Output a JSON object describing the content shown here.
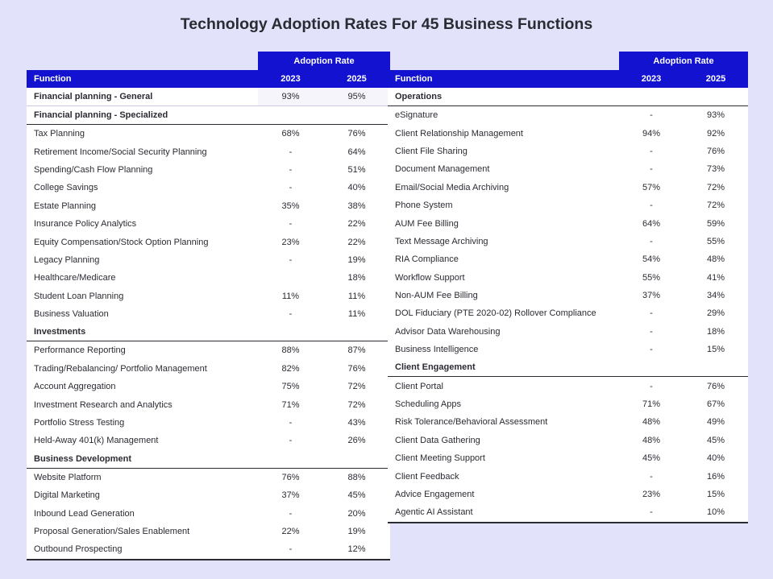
{
  "title": "Technology Adoption Rates For 45 Business Functions",
  "header": {
    "group_label": "Adoption Rate",
    "col_function": "Function",
    "col_2023": "2023",
    "col_2025": "2025"
  },
  "left_table": [
    {
      "section": "Financial planning - General",
      "v2023": "93%",
      "v2025": "95%",
      "rows": []
    },
    {
      "section": "Financial planning - Specialized",
      "rows": [
        {
          "name": "Tax Planning",
          "v2023": "68%",
          "v2025": "76%"
        },
        {
          "name": "Retirement Income/Social Security Planning",
          "v2023": "-",
          "v2025": "64%"
        },
        {
          "name": "Spending/Cash Flow Planning",
          "v2023": "-",
          "v2025": "51%"
        },
        {
          "name": "College Savings",
          "v2023": "-",
          "v2025": "40%"
        },
        {
          "name": "Estate Planning",
          "v2023": "35%",
          "v2025": "38%"
        },
        {
          "name": "Insurance Policy Analytics",
          "v2023": "-",
          "v2025": "22%"
        },
        {
          "name": "Equity Compensation/Stock Option Planning",
          "v2023": "23%",
          "v2025": "22%"
        },
        {
          "name": "Legacy Planning",
          "v2023": "-",
          "v2025": "19%"
        },
        {
          "name": "Healthcare/Medicare",
          "v2023": "",
          "v2025": "18%"
        },
        {
          "name": "Student Loan Planning",
          "v2023": "11%",
          "v2025": "11%"
        },
        {
          "name": "Business Valuation",
          "v2023": "-",
          "v2025": "11%"
        }
      ]
    },
    {
      "section": "Investments",
      "rows": [
        {
          "name": "Performance Reporting",
          "v2023": "88%",
          "v2025": "87%"
        },
        {
          "name": "Trading/Rebalancing/ Portfolio Management",
          "v2023": "82%",
          "v2025": "76%"
        },
        {
          "name": "Account Aggregation",
          "v2023": "75%",
          "v2025": "72%"
        },
        {
          "name": "Investment Research and Analytics",
          "v2023": "71%",
          "v2025": "72%"
        },
        {
          "name": "Portfolio Stress Testing",
          "v2023": "-",
          "v2025": "43%"
        },
        {
          "name": "Held-Away 401(k) Management",
          "v2023": "-",
          "v2025": "26%"
        }
      ]
    },
    {
      "section": "Business Development",
      "rows": [
        {
          "name": "Website Platform",
          "v2023": "76%",
          "v2025": "88%"
        },
        {
          "name": "Digital Marketing",
          "v2023": "37%",
          "v2025": "45%"
        },
        {
          "name": "Inbound Lead Generation",
          "v2023": "-",
          "v2025": "20%"
        },
        {
          "name": "Proposal Generation/Sales Enablement",
          "v2023": "22%",
          "v2025": "19%"
        },
        {
          "name": "Outbound Prospecting",
          "v2023": "-",
          "v2025": "12%"
        }
      ]
    }
  ],
  "right_table": [
    {
      "section": "Operations",
      "rows": [
        {
          "name": "eSignature",
          "v2023": "-",
          "v2025": "93%"
        },
        {
          "name": "Client Relationship Management",
          "v2023": "94%",
          "v2025": "92%"
        },
        {
          "name": "Client File Sharing",
          "v2023": "-",
          "v2025": "76%"
        },
        {
          "name": "Document Management",
          "v2023": "-",
          "v2025": "73%"
        },
        {
          "name": "Email/Social Media Archiving",
          "v2023": "57%",
          "v2025": "72%"
        },
        {
          "name": "Phone System",
          "v2023": "-",
          "v2025": "72%"
        },
        {
          "name": "AUM Fee Billing",
          "v2023": "64%",
          "v2025": "59%"
        },
        {
          "name": "Text Message Archiving",
          "v2023": "-",
          "v2025": "55%"
        },
        {
          "name": "RIA Compliance",
          "v2023": "54%",
          "v2025": "48%"
        },
        {
          "name": "Workflow Support",
          "v2023": "55%",
          "v2025": "41%"
        },
        {
          "name": "Non-AUM Fee Billing",
          "v2023": "37%",
          "v2025": "34%"
        },
        {
          "name": "DOL Fiduciary (PTE 2020-02) Rollover Compliance",
          "v2023": "-",
          "v2025": "29%"
        },
        {
          "name": "Advisor Data Warehousing",
          "v2023": "-",
          "v2025": "18%"
        },
        {
          "name": "Business Intelligence",
          "v2023": "-",
          "v2025": "15%"
        }
      ]
    },
    {
      "section": "Client Engagement",
      "rows": [
        {
          "name": "Client Portal",
          "v2023": "-",
          "v2025": "76%"
        },
        {
          "name": "Scheduling Apps",
          "v2023": "71%",
          "v2025": "67%"
        },
        {
          "name": "Risk Tolerance/Behavioral Assessment",
          "v2023": "48%",
          "v2025": "49%"
        },
        {
          "name": "Client Data Gathering",
          "v2023": "48%",
          "v2025": "45%"
        },
        {
          "name": "Client Meeting Support",
          "v2023": "45%",
          "v2025": "40%"
        },
        {
          "name": "Client Feedback",
          "v2023": "-",
          "v2025": "16%"
        },
        {
          "name": "Advice Engagement",
          "v2023": "23%",
          "v2025": "15%"
        },
        {
          "name": "Agentic AI Assistant",
          "v2023": "-",
          "v2025": "10%"
        }
      ]
    }
  ],
  "colors": {
    "header_bg": "#1212d0",
    "page_bg": "#e2e3fa",
    "text": "#2b2b33"
  }
}
